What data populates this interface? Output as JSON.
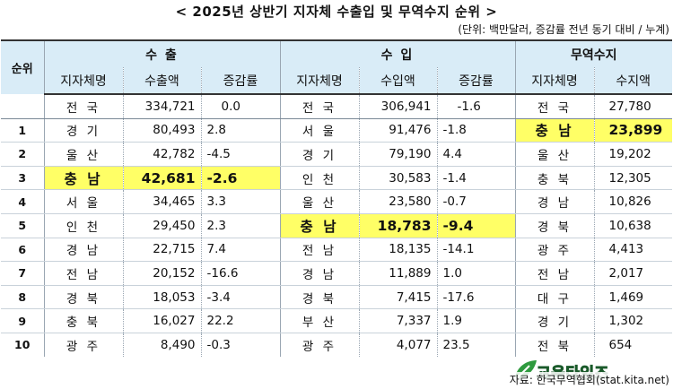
{
  "title": "< 2025년 상반기 지자체 수출입 및 무역수지 순위 >",
  "unit": "(단위: 백만달러, 증감률 전년 동기 대비 / 누계)",
  "headers": {
    "rank": "순위",
    "export": "수 출",
    "import": "수 입",
    "balance": "무역수지",
    "region": "지자체명",
    "export_amount": "수출액",
    "import_amount": "수입액",
    "rate": "증감률",
    "balance_amount": "수지액"
  },
  "total": {
    "ex_region": "전 국",
    "ex_amount": "334,721",
    "ex_rate": "0.0",
    "im_region": "전 국",
    "im_amount": "306,941",
    "im_rate": "-1.6",
    "bal_region": "전 국",
    "bal_amount": "27,780"
  },
  "rows": [
    {
      "rank": "1",
      "ex_region": "경 기",
      "ex_amount": "80,493",
      "ex_rate": "2.8",
      "im_region": "서 울",
      "im_amount": "91,476",
      "im_rate": "-1.8",
      "bal_region": "충 남",
      "bal_amount": "23,899"
    },
    {
      "rank": "2",
      "ex_region": "울 산",
      "ex_amount": "42,782",
      "ex_rate": "-4.5",
      "im_region": "경 기",
      "im_amount": "79,190",
      "im_rate": "4.4",
      "bal_region": "울 산",
      "bal_amount": "19,202"
    },
    {
      "rank": "3",
      "ex_region": "충 남",
      "ex_amount": "42,681",
      "ex_rate": "-2.6",
      "im_region": "인 천",
      "im_amount": "30,583",
      "im_rate": "-1.4",
      "bal_region": "충 북",
      "bal_amount": "12,305"
    },
    {
      "rank": "4",
      "ex_region": "서 울",
      "ex_amount": "34,465",
      "ex_rate": "3.3",
      "im_region": "울 산",
      "im_amount": "23,580",
      "im_rate": "-0.7",
      "bal_region": "경 남",
      "bal_amount": "10,826"
    },
    {
      "rank": "5",
      "ex_region": "인 천",
      "ex_amount": "29,450",
      "ex_rate": "2.3",
      "im_region": "충 남",
      "im_amount": "18,783",
      "im_rate": "-9.4",
      "bal_region": "경 북",
      "bal_amount": "10,638"
    },
    {
      "rank": "6",
      "ex_region": "경 남",
      "ex_amount": "22,715",
      "ex_rate": "7.4",
      "im_region": "전 남",
      "im_amount": "18,135",
      "im_rate": "-14.1",
      "bal_region": "광 주",
      "bal_amount": "4,413"
    },
    {
      "rank": "7",
      "ex_region": "전 남",
      "ex_amount": "20,152",
      "ex_rate": "-16.6",
      "im_region": "경 남",
      "im_amount": "11,889",
      "im_rate": "1.0",
      "bal_region": "전 남",
      "bal_amount": "2,017"
    },
    {
      "rank": "8",
      "ex_region": "경 북",
      "ex_amount": "18,053",
      "ex_rate": "-3.4",
      "im_region": "경 북",
      "im_amount": "7,415",
      "im_rate": "-17.6",
      "bal_region": "대 구",
      "bal_amount": "1,469"
    },
    {
      "rank": "9",
      "ex_region": "충 북",
      "ex_amount": "16,027",
      "ex_rate": "22.2",
      "im_region": "부 산",
      "im_amount": "7,337",
      "im_rate": "1.9",
      "bal_region": "경 기",
      "bal_amount": "1,302"
    },
    {
      "rank": "10",
      "ex_region": "광 주",
      "ex_amount": "8,490",
      "ex_rate": "-0.3",
      "im_region": "광 주",
      "im_amount": "4,077",
      "im_rate": "23.5",
      "bal_region": "전 북",
      "bal_amount": "654"
    }
  ],
  "highlight_color": "#ffff66",
  "header_color": "#d9ecf7",
  "source": "자료: 한국무역협회(stat.kita.net)",
  "logo_text": "교육타임즈"
}
